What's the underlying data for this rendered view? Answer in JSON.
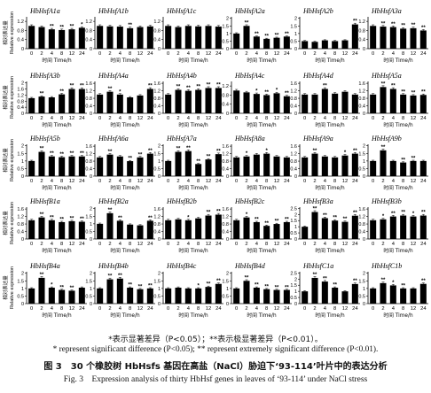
{
  "figure": {
    "y_axis_label_zh": "相对表达量",
    "y_axis_label_en": "Relative expression",
    "x_axis_label": "时间 Time/h",
    "notes_zh": "*表示显著差异（P<0.05）；**表示极显著差异（P<0.01）。",
    "notes_en": "* represent significant difference (P<0.05); ** represent extremely significant difference (P<0.01).",
    "title_zh": "图 3　30 个橡胶树 HbHsfs 基因在高盐（NaCl）胁迫下‘93-114’叶片中的表达分析",
    "title_en": "Fig. 3　Expression analysis of thirty HbHsf genes in leaves of ‘93-114’ under NaCl stress"
  },
  "chart_data": [
    {
      "type": "bar",
      "title": "HbHsfA1a",
      "categories": [
        "0",
        "2",
        "4",
        "8",
        "12",
        "24"
      ],
      "values": [
        1.0,
        0.95,
        0.85,
        0.82,
        0.85,
        0.92
      ],
      "sig": [
        "",
        "",
        "**",
        "**",
        "**",
        "*"
      ],
      "yticks": [
        0,
        0.4,
        0.8,
        1.2
      ],
      "ylim": [
        0,
        1.4
      ],
      "xlabel": "时间 Time/h",
      "ylabel": "相对表达量 Relative expression"
    },
    {
      "type": "bar",
      "title": "HbHsfA1b",
      "categories": [
        "0",
        "2",
        "4",
        "8",
        "12",
        "24"
      ],
      "values": [
        1.0,
        0.98,
        0.97,
        0.9,
        0.95,
        0.98
      ],
      "sig": [
        "",
        "",
        "",
        "**",
        "",
        ""
      ],
      "yticks": [
        0,
        0.4,
        0.8,
        1.2
      ],
      "ylim": [
        0,
        1.4
      ],
      "xlabel": "时间 Time/h"
    },
    {
      "type": "bar",
      "title": "HbHsfA1c",
      "categories": [
        "0",
        "2",
        "4",
        "8",
        "12",
        "24"
      ],
      "values": [
        1.0,
        0.95,
        1.0,
        0.98,
        1.0,
        0.97
      ],
      "sig": [
        "",
        "",
        "",
        "",
        "",
        ""
      ],
      "yticks": [
        0,
        0.4,
        0.8,
        1.2
      ],
      "ylim": [
        0,
        1.4
      ],
      "xlabel": "时间 Time/h"
    },
    {
      "type": "bar",
      "title": "HbHsfA2a",
      "categories": [
        "0",
        "2",
        "4",
        "8",
        "12",
        "24"
      ],
      "values": [
        1.0,
        1.5,
        0.8,
        0.65,
        0.72,
        0.8
      ],
      "sig": [
        "",
        "**",
        "**",
        "**",
        "**",
        "**"
      ],
      "yticks": [
        0,
        0.5,
        1.0,
        1.5,
        2.0
      ],
      "ylim": [
        0,
        2.1
      ],
      "xlabel": "时间 Time/h"
    },
    {
      "type": "bar",
      "title": "HbHsfA2b",
      "categories": [
        "0",
        "2",
        "4",
        "8",
        "12",
        "24"
      ],
      "values": [
        0.5,
        0.45,
        0.55,
        0.5,
        0.55,
        1.6
      ],
      "sig": [
        "",
        "",
        "",
        "",
        "",
        "**"
      ],
      "yticks": [
        0,
        0.5,
        1.0,
        1.5,
        2.0
      ],
      "ylim": [
        0,
        2.1
      ],
      "xlabel": "时间 Time/h"
    },
    {
      "type": "bar",
      "title": "HbHsfA3a",
      "categories": [
        "0",
        "2",
        "4",
        "8",
        "12",
        "24"
      ],
      "values": [
        1.0,
        0.97,
        0.95,
        0.88,
        0.9,
        0.8
      ],
      "sig": [
        "",
        "**",
        "**",
        "**",
        "**",
        "**"
      ],
      "yticks": [
        0,
        0.4,
        0.8,
        1.2
      ],
      "ylim": [
        0,
        1.4
      ],
      "xlabel": "时间 Time/h"
    },
    {
      "type": "bar",
      "title": "HbHsfA3b",
      "categories": [
        "0",
        "2",
        "4",
        "8",
        "12",
        "24"
      ],
      "values": [
        1.0,
        1.1,
        1.05,
        1.25,
        1.6,
        1.6
      ],
      "sig": [
        "",
        "**",
        "",
        "**",
        "**",
        "**"
      ],
      "yticks": [
        0,
        0.4,
        0.8,
        1.2,
        1.6,
        2.0
      ],
      "ylim": [
        0,
        2.1
      ],
      "xlabel": "时间 Time/h"
    },
    {
      "type": "bar",
      "title": "HbHsfA4a",
      "categories": [
        "0",
        "2",
        "4",
        "8",
        "12",
        "24"
      ],
      "values": [
        1.0,
        1.15,
        1.0,
        0.85,
        0.95,
        1.3
      ],
      "sig": [
        "",
        "**",
        "*",
        "",
        "",
        "**"
      ],
      "yticks": [
        0,
        0.4,
        0.8,
        1.2,
        1.6
      ],
      "ylim": [
        0,
        1.7
      ],
      "xlabel": "时间 Time/h"
    },
    {
      "type": "bar",
      "title": "HbHsfA4b",
      "categories": [
        "0",
        "2",
        "4",
        "8",
        "12",
        "24"
      ],
      "values": [
        1.0,
        1.25,
        1.2,
        1.25,
        1.35,
        1.35
      ],
      "sig": [
        "",
        "**",
        "**",
        "**",
        "**",
        "**"
      ],
      "yticks": [
        0,
        0.4,
        0.8,
        1.2,
        1.6
      ],
      "ylim": [
        0,
        1.7
      ],
      "xlabel": "时间 Time/h"
    },
    {
      "type": "bar",
      "title": "HbHsfA4c",
      "categories": [
        "0",
        "2",
        "4",
        "8",
        "12",
        "24"
      ],
      "values": [
        1.0,
        0.92,
        0.85,
        0.8,
        0.88,
        0.75
      ],
      "sig": [
        "",
        "",
        "*",
        "**",
        "*",
        "**"
      ],
      "yticks": [
        0,
        0.4,
        0.8,
        1.2
      ],
      "ylim": [
        0,
        1.4
      ],
      "xlabel": "时间 Time/h"
    },
    {
      "type": "bar",
      "title": "HbHsfA4d",
      "categories": [
        "0",
        "2",
        "4",
        "8",
        "12",
        "24"
      ],
      "values": [
        1.0,
        1.0,
        1.3,
        1.05,
        1.15,
        1.0
      ],
      "sig": [
        "",
        "",
        "**",
        "",
        "",
        ""
      ],
      "yticks": [
        0,
        0.4,
        0.8,
        1.2,
        1.6
      ],
      "ylim": [
        0,
        1.7
      ],
      "xlabel": "时间 Time/h"
    },
    {
      "type": "bar",
      "title": "HbHsfA5a",
      "categories": [
        "0",
        "2",
        "4",
        "8",
        "12",
        "24"
      ],
      "values": [
        1.0,
        1.4,
        1.3,
        1.0,
        0.95,
        0.98
      ],
      "sig": [
        "",
        "**",
        "**",
        "**",
        "**",
        "**"
      ],
      "yticks": [
        0,
        0.4,
        0.8,
        1.2,
        1.6
      ],
      "ylim": [
        0,
        1.7
      ],
      "xlabel": "时间 Time/h"
    },
    {
      "type": "bar",
      "title": "HbHsfA5b",
      "categories": [
        "0",
        "2",
        "4",
        "8",
        "12",
        "24"
      ],
      "values": [
        1.0,
        1.6,
        1.3,
        1.25,
        1.3,
        1.3
      ],
      "sig": [
        "",
        "**",
        "**",
        "**",
        "**",
        "**"
      ],
      "yticks": [
        0,
        0.5,
        1.0,
        1.5,
        2.0
      ],
      "ylim": [
        0,
        2.1
      ],
      "xlabel": "时间 Time/h",
      "ylabel": "相对表达量 Relative expression"
    },
    {
      "type": "bar",
      "title": "HbHsfA6a",
      "categories": [
        "0",
        "2",
        "4",
        "8",
        "12",
        "24"
      ],
      "values": [
        1.0,
        1.15,
        1.05,
        0.8,
        1.0,
        1.2
      ],
      "sig": [
        "",
        "**",
        "",
        "**",
        "**",
        "**"
      ],
      "yticks": [
        0,
        0.4,
        0.8,
        1.2,
        1.6
      ],
      "ylim": [
        0,
        1.7
      ],
      "xlabel": "时间 Time/h"
    },
    {
      "type": "bar",
      "title": "HbHsfA7a",
      "categories": [
        "0",
        "2",
        "4",
        "8",
        "12",
        "24"
      ],
      "values": [
        1.0,
        1.6,
        1.65,
        0.8,
        1.1,
        1.45
      ],
      "sig": [
        "",
        "**",
        "**",
        "**",
        "**",
        "**"
      ],
      "yticks": [
        0,
        0.5,
        1.0,
        1.5,
        2.0
      ],
      "ylim": [
        0,
        2.1
      ],
      "xlabel": "时间 Time/h"
    },
    {
      "type": "bar",
      "title": "HbHsfA8a",
      "categories": [
        "0",
        "2",
        "4",
        "8",
        "12",
        "24"
      ],
      "values": [
        1.0,
        1.05,
        1.15,
        1.2,
        1.05,
        1.0
      ],
      "sig": [
        "",
        "*",
        "",
        "*",
        "",
        ""
      ],
      "yticks": [
        0,
        0.4,
        0.8,
        1.2,
        1.6
      ],
      "ylim": [
        0,
        1.7
      ],
      "xlabel": "时间 Time/h"
    },
    {
      "type": "bar",
      "title": "HbHsfA9a",
      "categories": [
        "0",
        "2",
        "4",
        "8",
        "12",
        "24"
      ],
      "values": [
        1.0,
        1.2,
        1.05,
        1.0,
        1.1,
        1.2
      ],
      "sig": [
        "",
        "**",
        "",
        "",
        "*",
        "**"
      ],
      "yticks": [
        0,
        0.4,
        0.8,
        1.2,
        1.6
      ],
      "ylim": [
        0,
        1.7
      ],
      "xlabel": "时间 Time/h"
    },
    {
      "type": "bar",
      "title": "HbHsfA9b",
      "categories": [
        "0",
        "2",
        "4",
        "8",
        "12",
        "24"
      ],
      "values": [
        1.0,
        1.7,
        1.0,
        0.9,
        1.0,
        1.0
      ],
      "sig": [
        "",
        "**",
        "",
        "**",
        "**",
        ""
      ],
      "yticks": [
        0,
        0.5,
        1.0,
        1.5,
        2.0
      ],
      "ylim": [
        0,
        2.1
      ],
      "xlabel": "时间 Time/h"
    },
    {
      "type": "bar",
      "title": "HbHsfB1a",
      "categories": [
        "0",
        "2",
        "4",
        "8",
        "12",
        "24"
      ],
      "values": [
        1.0,
        1.15,
        1.0,
        0.9,
        0.95,
        0.92
      ],
      "sig": [
        "",
        "**",
        "**",
        "**",
        "**",
        "**"
      ],
      "yticks": [
        0,
        0.4,
        0.8,
        1.2,
        1.6
      ],
      "ylim": [
        0,
        1.7
      ],
      "xlabel": "时间 Time/h",
      "ylabel": "相对表达量 Relative expression"
    },
    {
      "type": "bar",
      "title": "HbHsfB2a",
      "categories": [
        "0",
        "2",
        "4",
        "8",
        "12",
        "24"
      ],
      "values": [
        1.0,
        1.7,
        1.2,
        0.95,
        0.9,
        1.2
      ],
      "sig": [
        "",
        "**",
        "**",
        "",
        "",
        "**"
      ],
      "yticks": [
        0,
        0.5,
        1.0,
        1.5,
        2.0
      ],
      "ylim": [
        0,
        2.1
      ],
      "xlabel": "时间 Time/h"
    },
    {
      "type": "bar",
      "title": "HbHsfB2b",
      "categories": [
        "0",
        "2",
        "4",
        "8",
        "12",
        "24"
      ],
      "values": [
        1.0,
        1.05,
        1.0,
        1.1,
        1.25,
        1.3
      ],
      "sig": [
        "",
        "",
        "*",
        "",
        "**",
        "**"
      ],
      "yticks": [
        0,
        0.4,
        0.8,
        1.2,
        1.6
      ],
      "ylim": [
        0,
        1.7
      ],
      "xlabel": "时间 Time/h"
    },
    {
      "type": "bar",
      "title": "HbHsfB2c",
      "categories": [
        "0",
        "2",
        "4",
        "8",
        "12",
        "24"
      ],
      "values": [
        1.0,
        1.15,
        0.9,
        0.7,
        0.8,
        0.9
      ],
      "sig": [
        "",
        "*",
        "**",
        "**",
        "**",
        "**"
      ],
      "yticks": [
        0,
        0.4,
        0.8,
        1.2,
        1.6
      ],
      "ylim": [
        0,
        1.7
      ],
      "xlabel": "时间 Time/h"
    },
    {
      "type": "bar",
      "title": "HbHsfB3a",
      "categories": [
        "0",
        "2",
        "4",
        "8",
        "12",
        "24"
      ],
      "values": [
        1.0,
        2.2,
        1.7,
        1.5,
        1.4,
        1.9
      ],
      "sig": [
        "",
        "**",
        "**",
        "**",
        "**",
        "**"
      ],
      "yticks": [
        0,
        0.5,
        1.0,
        1.5,
        2.0,
        2.5
      ],
      "ylim": [
        0,
        2.6
      ],
      "xlabel": "时间 Time/h"
    },
    {
      "type": "bar",
      "title": "HbHsfB3b",
      "categories": [
        "0",
        "2",
        "4",
        "8",
        "12",
        "24"
      ],
      "values": [
        1.0,
        1.05,
        1.2,
        1.25,
        1.2,
        1.25
      ],
      "sig": [
        "",
        "*",
        "**",
        "**",
        "*",
        "**"
      ],
      "yticks": [
        0,
        0.4,
        0.8,
        1.2,
        1.6
      ],
      "ylim": [
        0,
        1.7
      ],
      "xlabel": "时间 Time/h"
    },
    {
      "type": "bar",
      "title": "HbHsfB4a",
      "categories": [
        "0",
        "2",
        "4",
        "8",
        "12",
        "24"
      ],
      "values": [
        1.0,
        1.7,
        1.05,
        0.9,
        0.85,
        1.05
      ],
      "sig": [
        "",
        "**",
        "*",
        "**",
        "**",
        ""
      ],
      "yticks": [
        0,
        0.5,
        1.0,
        1.5,
        2.0
      ],
      "ylim": [
        0,
        2.1
      ],
      "xlabel": "时间 Time/h",
      "ylabel": "相对表达量 Relative expression"
    },
    {
      "type": "bar",
      "title": "HbHsfB4b",
      "categories": [
        "0",
        "2",
        "4",
        "8",
        "12",
        "24"
      ],
      "values": [
        1.0,
        1.6,
        1.65,
        1.05,
        0.95,
        1.0
      ],
      "sig": [
        "",
        "**",
        "**",
        "**",
        "**",
        "**"
      ],
      "yticks": [
        0,
        0.5,
        1.0,
        1.5,
        2.0
      ],
      "ylim": [
        0,
        2.1
      ],
      "xlabel": "时间 Time/h"
    },
    {
      "type": "bar",
      "title": "HbHsfB4c",
      "categories": [
        "0",
        "2",
        "4",
        "8",
        "12",
        "24"
      ],
      "values": [
        1.0,
        1.05,
        1.0,
        1.0,
        1.1,
        1.3
      ],
      "sig": [
        "",
        "",
        "",
        "*",
        "**",
        "**"
      ],
      "yticks": [
        0,
        0.5,
        1.0,
        1.5,
        2.0
      ],
      "ylim": [
        0,
        2.1
      ],
      "xlabel": "时间 Time/h"
    },
    {
      "type": "bar",
      "title": "HbHsfB4d",
      "categories": [
        "0",
        "2",
        "4",
        "8",
        "12",
        "24"
      ],
      "values": [
        1.0,
        1.5,
        1.05,
        0.95,
        0.9,
        0.9
      ],
      "sig": [
        "",
        "**",
        "**",
        "**",
        "**",
        "**"
      ],
      "yticks": [
        0,
        0.5,
        1.0,
        1.5,
        2.0
      ],
      "ylim": [
        0,
        2.1
      ],
      "xlabel": "时间 Time/h"
    },
    {
      "type": "bar",
      "title": "HbHsfC1a",
      "categories": [
        "0",
        "2",
        "4",
        "8",
        "12",
        "24"
      ],
      "values": [
        1.0,
        2.1,
        1.8,
        1.3,
        1.0,
        1.6
      ],
      "sig": [
        "",
        "**",
        "**",
        "**",
        "",
        "**"
      ],
      "yticks": [
        0,
        0.5,
        1.0,
        1.5,
        2.0,
        2.5
      ],
      "ylim": [
        0,
        2.6
      ],
      "xlabel": "时间 Time/h"
    },
    {
      "type": "bar",
      "title": "HbHsfC1b",
      "categories": [
        "0",
        "2",
        "4",
        "8",
        "12",
        "24"
      ],
      "values": [
        1.0,
        1.35,
        1.2,
        1.0,
        1.0,
        1.3
      ],
      "sig": [
        "",
        "**",
        "*",
        "**",
        "",
        "**"
      ],
      "yticks": [
        0,
        0.5,
        1.0,
        1.5,
        2.0
      ],
      "ylim": [
        0,
        2.1
      ],
      "xlabel": "时间 Time/h"
    }
  ]
}
